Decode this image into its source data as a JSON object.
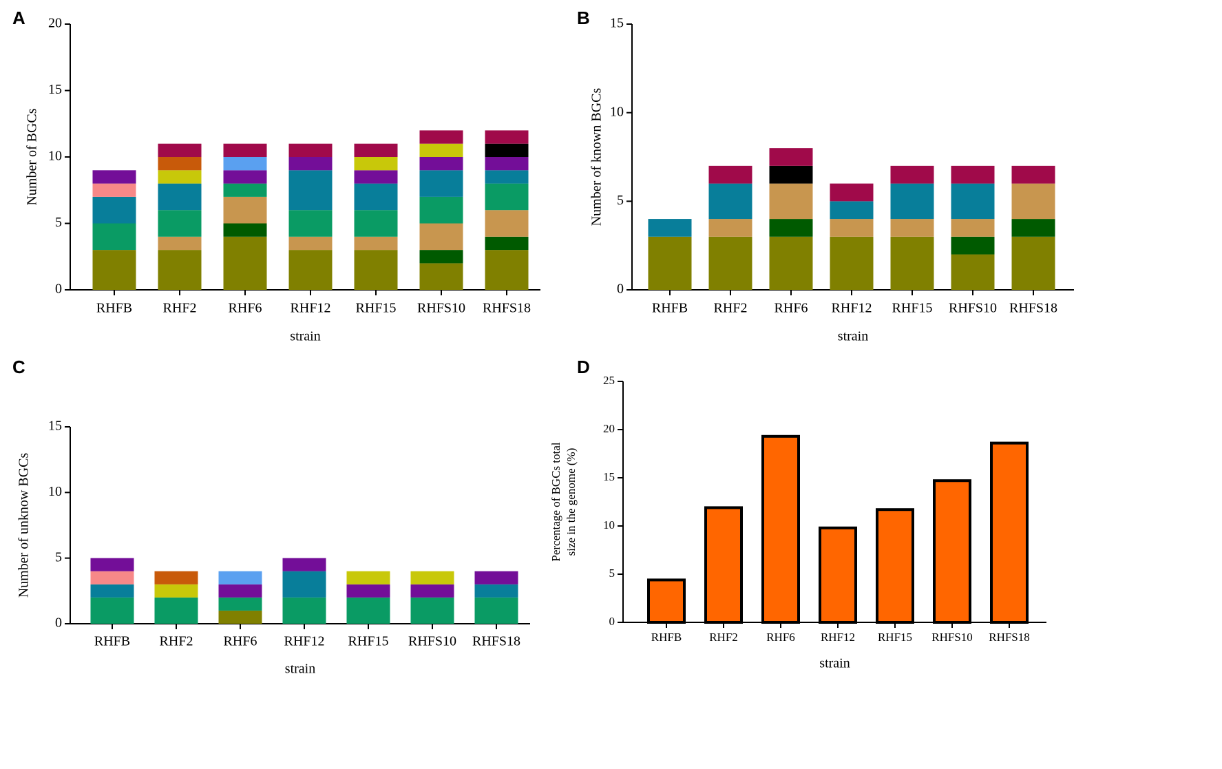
{
  "chart_data": [
    {
      "type": "bar",
      "label": "A",
      "stacked": true,
      "ylabel": [
        "Number of BGCs"
      ],
      "xlabel": "strain",
      "categories": [
        "RHFB",
        "RHF2",
        "RHF6",
        "RHF12",
        "RHF15",
        "RHFS10",
        "RHFS18"
      ],
      "ylim": [
        0,
        20
      ],
      "yticks": [
        0,
        5,
        10,
        15,
        20
      ],
      "series": [
        {
          "color": "#808000",
          "values": [
            3,
            3,
            4,
            3,
            3,
            2,
            3
          ]
        },
        {
          "color": "#005a00",
          "values": [
            0,
            0,
            1,
            0,
            0,
            1,
            1
          ]
        },
        {
          "color": "#c8964f",
          "values": [
            0,
            1,
            2,
            1,
            1,
            2,
            2
          ]
        },
        {
          "color": "#0a9b64",
          "values": [
            2,
            2,
            1,
            2,
            2,
            2,
            2
          ]
        },
        {
          "color": "#087e9a",
          "values": [
            2,
            2,
            0,
            3,
            2,
            2,
            1
          ]
        },
        {
          "color": "#f78888",
          "values": [
            1,
            0,
            0,
            0,
            0,
            0,
            0
          ]
        },
        {
          "color": "#730e98",
          "values": [
            1,
            0,
            1,
            1,
            1,
            1,
            1
          ]
        },
        {
          "color": "#5aa0f0",
          "values": [
            0,
            0,
            1,
            0,
            0,
            0,
            0
          ]
        },
        {
          "color": "#c8c80a",
          "values": [
            0,
            1,
            0,
            0,
            1,
            1,
            0
          ]
        },
        {
          "color": "#c85a0a",
          "values": [
            0,
            1,
            0,
            0,
            0,
            0,
            0
          ]
        },
        {
          "color": "#000000",
          "values": [
            0,
            0,
            0,
            0,
            0,
            0,
            1
          ]
        },
        {
          "color": "#a00a4a",
          "values": [
            0,
            1,
            1,
            1,
            1,
            1,
            1
          ]
        }
      ]
    },
    {
      "type": "bar",
      "label": "B",
      "stacked": true,
      "ylabel": [
        "Number of known BGCs"
      ],
      "xlabel": "strain",
      "categories": [
        "RHFB",
        "RHF2",
        "RHF6",
        "RHF12",
        "RHF15",
        "RHFS10",
        "RHFS18"
      ],
      "ylim": [
        0,
        15
      ],
      "yticks": [
        0,
        5,
        10,
        15
      ],
      "series": [
        {
          "color": "#808000",
          "values": [
            3,
            3,
            3,
            3,
            3,
            2,
            3
          ]
        },
        {
          "color": "#005a00",
          "values": [
            0,
            0,
            1,
            0,
            0,
            1,
            1
          ]
        },
        {
          "color": "#c8964f",
          "values": [
            0,
            1,
            2,
            1,
            1,
            1,
            2
          ]
        },
        {
          "color": "#087e9a",
          "values": [
            1,
            2,
            0,
            1,
            2,
            2,
            0
          ]
        },
        {
          "color": "#000000",
          "values": [
            0,
            0,
            1,
            0,
            0,
            0,
            0
          ]
        },
        {
          "color": "#a00a4a",
          "values": [
            0,
            1,
            1,
            1,
            1,
            1,
            1
          ]
        }
      ]
    },
    {
      "type": "bar",
      "label": "C",
      "stacked": true,
      "ylabel": [
        "Number of unknow BGCs"
      ],
      "xlabel": "strain",
      "categories": [
        "RHFB",
        "RHF2",
        "RHF6",
        "RHF12",
        "RHF15",
        "RHFS10",
        "RHFS18"
      ],
      "ylim": [
        0,
        15
      ],
      "yticks": [
        0,
        5,
        10,
        15
      ],
      "series": [
        {
          "color": "#808000",
          "values": [
            0,
            0,
            1,
            0,
            0,
            0,
            0
          ]
        },
        {
          "color": "#0a9b64",
          "values": [
            2,
            2,
            1,
            2,
            2,
            2,
            2
          ]
        },
        {
          "color": "#087e9a",
          "values": [
            1,
            0,
            0,
            2,
            0,
            0,
            1
          ]
        },
        {
          "color": "#f78888",
          "values": [
            1,
            0,
            0,
            0,
            0,
            0,
            0
          ]
        },
        {
          "color": "#730e98",
          "values": [
            1,
            0,
            1,
            1,
            1,
            1,
            1
          ]
        },
        {
          "color": "#5aa0f0",
          "values": [
            0,
            0,
            1,
            0,
            0,
            0,
            0
          ]
        },
        {
          "color": "#c8c80a",
          "values": [
            0,
            1,
            0,
            0,
            1,
            1,
            0
          ]
        },
        {
          "color": "#c85a0a",
          "values": [
            0,
            1,
            0,
            0,
            0,
            0,
            0
          ]
        }
      ]
    },
    {
      "type": "bar",
      "label": "D",
      "stacked": false,
      "ylabel": [
        "Percentage of BGCs total",
        "size in the genome (%)"
      ],
      "xlabel": "strain",
      "categories": [
        "RHFB",
        "RHF2",
        "RHF6",
        "RHF12",
        "RHF15",
        "RHFS10",
        "RHFS18"
      ],
      "ylim": [
        0,
        25
      ],
      "yticks": [
        0,
        5,
        10,
        15,
        20,
        25
      ],
      "series": [
        {
          "color": "#ff6600",
          "values": [
            4.4,
            11.9,
            19.3,
            9.8,
            11.7,
            14.7,
            18.6
          ]
        }
      ]
    }
  ]
}
